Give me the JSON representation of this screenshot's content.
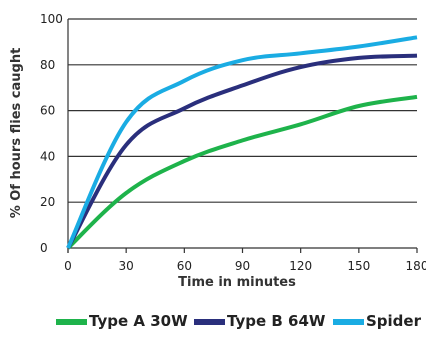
{
  "chart_data": {
    "type": "line",
    "xlabel": "Time in minutes",
    "ylabel": "% Of hours  flies caught",
    "x": [
      0,
      30,
      60,
      90,
      120,
      150,
      180
    ],
    "xticks": [
      "0",
      "30",
      "60",
      "90",
      "120",
      "150",
      "180"
    ],
    "yticks": [
      "0",
      "20",
      "40",
      "60",
      "80",
      "100"
    ],
    "xlim": [
      0,
      180
    ],
    "ylim": [
      0,
      100
    ],
    "grid": "horizontal",
    "legend_position": "bottom",
    "series": [
      {
        "name": "Type A 30W",
        "color": "#1eb34b",
        "values": [
          0,
          24,
          38,
          47,
          54,
          62,
          66
        ]
      },
      {
        "name": "Type B 64W",
        "color": "#2a2f7c",
        "values": [
          0,
          45,
          61,
          71,
          79,
          83,
          84
        ]
      },
      {
        "name": "Spider",
        "color": "#1aace3",
        "values": [
          0,
          55,
          73,
          82,
          85,
          88,
          92
        ]
      }
    ]
  }
}
